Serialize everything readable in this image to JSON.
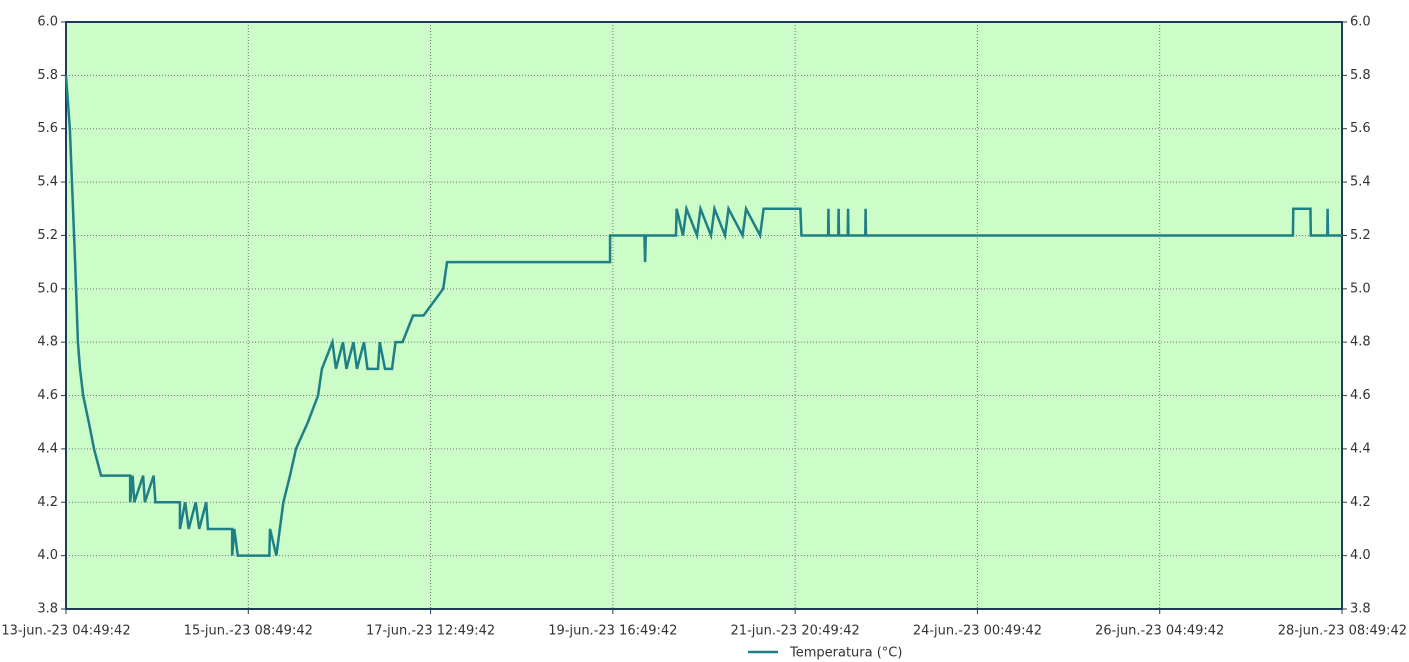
{
  "chart_data": {
    "type": "line",
    "xlim": [
      0,
      364
    ],
    "xticks": [
      {
        "value": 0,
        "label": "13-jun.-23 04:49:42"
      },
      {
        "value": 52,
        "label": "15-jun.-23 08:49:42"
      },
      {
        "value": 104,
        "label": "17-jun.-23 12:49:42"
      },
      {
        "value": 156,
        "label": "19-jun.-23 16:49:42"
      },
      {
        "value": 208,
        "label": "21-jun.-23 20:49:42"
      },
      {
        "value": 260,
        "label": "24-jun.-23 00:49:42"
      },
      {
        "value": 312,
        "label": "26-jun.-23 04:49:42"
      },
      {
        "value": 364,
        "label": "28-jun.-23 08:49:42"
      }
    ],
    "ylim": [
      3.8,
      6.0
    ],
    "yticks": [
      {
        "value": 3.8,
        "label": "3.8"
      },
      {
        "value": 4.0,
        "label": "4.0"
      },
      {
        "value": 4.2,
        "label": "4.2"
      },
      {
        "value": 4.4,
        "label": "4.4"
      },
      {
        "value": 4.6,
        "label": "4.6"
      },
      {
        "value": 4.8,
        "label": "4.8"
      },
      {
        "value": 5.0,
        "label": "5.0"
      },
      {
        "value": 5.2,
        "label": "5.2"
      },
      {
        "value": 5.4,
        "label": "5.4"
      },
      {
        "value": 5.6,
        "label": "5.6"
      },
      {
        "value": 5.8,
        "label": "5.8"
      },
      {
        "value": 6.0,
        "label": "6.0"
      }
    ],
    "grid": true,
    "background": "#ccfcc8",
    "legend": "bottom",
    "series": [
      {
        "name": "Temperatura (°C)",
        "color": "#1e7f86",
        "x": [
          0,
          1.1,
          2.3,
          2.6,
          3.4,
          4.0,
          4.9,
          6.5,
          8.0,
          10,
          18.3,
          18.3,
          19,
          19.5,
          22,
          22.5,
          25,
          25.5,
          32.5,
          32.5,
          34,
          35,
          37,
          38,
          40,
          40.5,
          47.4,
          47.4,
          48,
          49,
          58,
          58.2,
          60,
          61,
          62,
          63.9,
          65.6,
          69,
          71.9,
          73,
          76,
          77,
          79,
          80,
          82,
          83,
          85,
          86,
          89,
          89.5,
          91,
          93,
          94,
          96,
          99,
          102,
          107.6,
          108.7,
          155.2,
          155.2,
          165,
          165.2,
          165.4,
          174,
          174.2,
          176,
          177,
          180,
          181,
          184,
          185,
          188,
          189,
          193,
          194,
          198,
          199,
          209.5,
          209.8,
          217.4,
          217.5,
          217.6,
          220.3,
          220.4,
          220.5,
          223,
          223.1,
          223.2,
          228,
          228.1,
          228.2,
          350,
          350.1,
          355,
          355.1,
          359.8,
          359.9,
          360,
          364
        ],
        "values": [
          5.8,
          5.6,
          5.2,
          5.1,
          4.8,
          4.7,
          4.6,
          4.5,
          4.4,
          4.3,
          4.3,
          4.2,
          4.3,
          4.2,
          4.3,
          4.2,
          4.3,
          4.2,
          4.2,
          4.1,
          4.2,
          4.1,
          4.2,
          4.1,
          4.2,
          4.1,
          4.1,
          4.0,
          4.1,
          4.0,
          4.0,
          4.1,
          4.0,
          4.1,
          4.2,
          4.3,
          4.4,
          4.5,
          4.6,
          4.7,
          4.8,
          4.7,
          4.8,
          4.7,
          4.8,
          4.7,
          4.8,
          4.7,
          4.7,
          4.8,
          4.7,
          4.7,
          4.8,
          4.8,
          4.9,
          4.9,
          5.0,
          5.1,
          5.1,
          5.2,
          5.2,
          5.1,
          5.2,
          5.2,
          5.3,
          5.2,
          5.3,
          5.2,
          5.3,
          5.2,
          5.3,
          5.2,
          5.3,
          5.2,
          5.3,
          5.2,
          5.3,
          5.3,
          5.2,
          5.2,
          5.3,
          5.2,
          5.2,
          5.3,
          5.2,
          5.2,
          5.3,
          5.2,
          5.2,
          5.3,
          5.2,
          5.2,
          5.3,
          5.3,
          5.2,
          5.2,
          5.3,
          5.2,
          5.2
        ]
      }
    ]
  }
}
